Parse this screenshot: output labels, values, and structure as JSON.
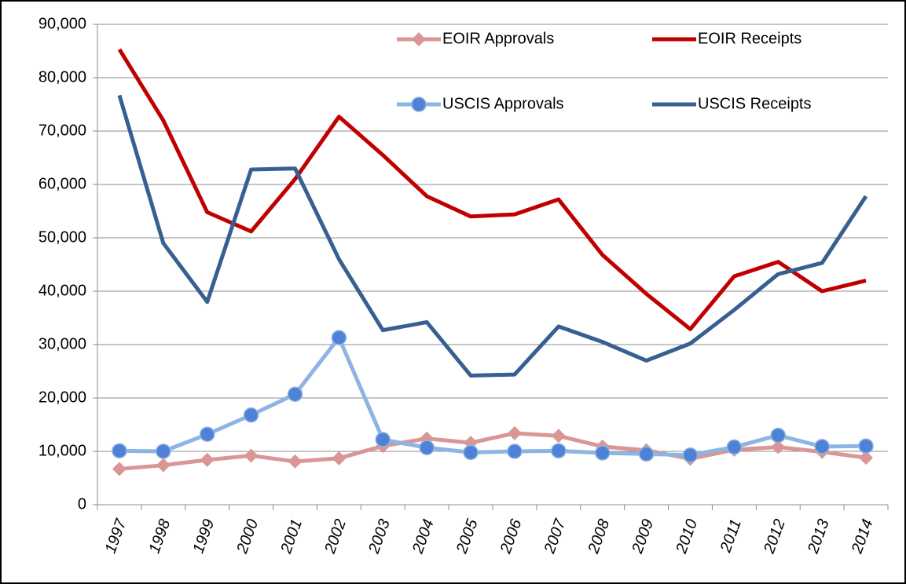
{
  "chart_data": {
    "type": "line",
    "categories": [
      "1997",
      "1998",
      "1999",
      "2000",
      "2001",
      "2002",
      "2003",
      "2004",
      "2005",
      "2006",
      "2007",
      "2008",
      "2009",
      "2010",
      "2011",
      "2012",
      "2013",
      "2014"
    ],
    "series": [
      {
        "name": "EOIR Approvals",
        "color": "#d99694",
        "marker": "diamond",
        "values": [
          6700,
          7400,
          8400,
          9200,
          8100,
          8700,
          11000,
          12400,
          11600,
          13400,
          12900,
          10900,
          10200,
          8600,
          10300,
          10800,
          9900,
          8800
        ]
      },
      {
        "name": "EOIR Receipts",
        "color": "#c00000",
        "marker": null,
        "values": [
          85300,
          72000,
          54800,
          51200,
          61000,
          72700,
          65500,
          57800,
          54000,
          54400,
          57200,
          46800,
          39500,
          32900,
          42800,
          45500,
          40000,
          42000
        ]
      },
      {
        "name": "USCIS Approvals",
        "color": "#8db4e2",
        "marker": "circle",
        "marker_color": "#4f81d6",
        "values": [
          10100,
          10000,
          13200,
          16800,
          20700,
          31300,
          12200,
          10700,
          9800,
          10000,
          10100,
          9700,
          9500,
          9300,
          10800,
          13000,
          10900,
          11000
        ]
      },
      {
        "name": "USCIS Receipts",
        "color": "#376092",
        "marker": null,
        "values": [
          76700,
          49000,
          38000,
          62800,
          63000,
          46000,
          32700,
          34200,
          24200,
          24400,
          33400,
          30500,
          27000,
          30200,
          36500,
          43200,
          45300,
          57800
        ]
      }
    ],
    "ylim": [
      0,
      90000
    ],
    "yticks": [
      0,
      {
        "value": 10000,
        "label": "10,000"
      },
      {
        "value": 20000,
        "label": "20,000"
      },
      {
        "value": 30000,
        "label": "30,000"
      },
      {
        "value": 40000,
        "label": "40,000"
      },
      {
        "value": 50000,
        "label": "50,000"
      },
      {
        "value": 60000,
        "label": "60,000"
      },
      {
        "value": 70000,
        "label": "70,000"
      },
      {
        "value": 80000,
        "label": "80,000"
      },
      {
        "value": 90000,
        "label": "90,000"
      }
    ],
    "grid": true
  }
}
